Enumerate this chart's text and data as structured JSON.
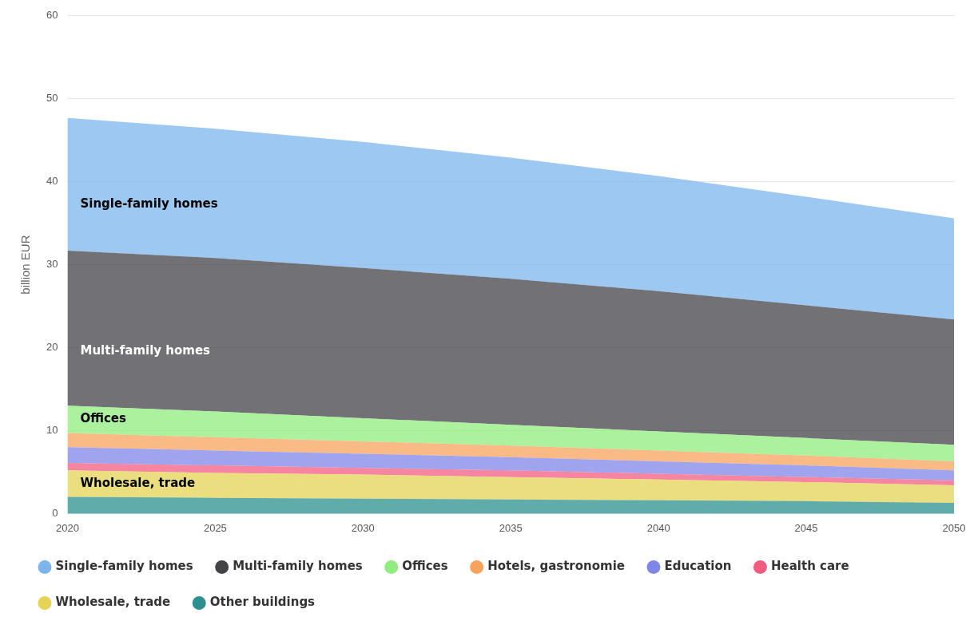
{
  "chart_data": {
    "type": "area",
    "stacked": true,
    "ylabel": "billion EUR",
    "x": [
      2020,
      2025,
      2030,
      2035,
      2040,
      2045,
      2050
    ],
    "xlim": [
      2020,
      2050
    ],
    "xticks": [
      2020,
      2025,
      2030,
      2035,
      2040,
      2045,
      2050
    ],
    "ylim": [
      0,
      60
    ],
    "yticks": [
      0,
      10,
      20,
      30,
      40,
      50,
      60
    ],
    "grid": "y",
    "legend": "bottom",
    "marker": "none",
    "series": [
      {
        "name": "Other buildings",
        "color": "#2b908f",
        "values": [
          2.0,
          1.9,
          1.8,
          1.7,
          1.6,
          1.5,
          1.3
        ]
      },
      {
        "name": "Wholesale, trade",
        "color": "#e4d354",
        "values": [
          3.2,
          3.0,
          2.9,
          2.7,
          2.5,
          2.3,
          2.1
        ]
      },
      {
        "name": "Health care",
        "color": "#f15c80",
        "values": [
          0.9,
          0.9,
          0.8,
          0.8,
          0.7,
          0.6,
          0.6
        ]
      },
      {
        "name": "Education",
        "color": "#8085e9",
        "values": [
          1.9,
          1.8,
          1.7,
          1.6,
          1.5,
          1.4,
          1.2
        ]
      },
      {
        "name": "Hotels, gastronomie",
        "color": "#f7a35c",
        "values": [
          1.7,
          1.6,
          1.5,
          1.4,
          1.3,
          1.2,
          1.1
        ]
      },
      {
        "name": "Offices",
        "color": "#90ed7d",
        "values": [
          3.3,
          3.1,
          2.8,
          2.5,
          2.3,
          2.1,
          2.0
        ]
      },
      {
        "name": "Multi-family homes",
        "color": "#434348",
        "values": [
          18.7,
          18.5,
          18.1,
          17.6,
          16.9,
          16.0,
          15.1
        ]
      },
      {
        "name": "Single-family homes",
        "color": "#7cb5ec",
        "values": [
          16.0,
          15.6,
          15.2,
          14.6,
          13.9,
          13.1,
          12.2
        ]
      }
    ]
  }
}
